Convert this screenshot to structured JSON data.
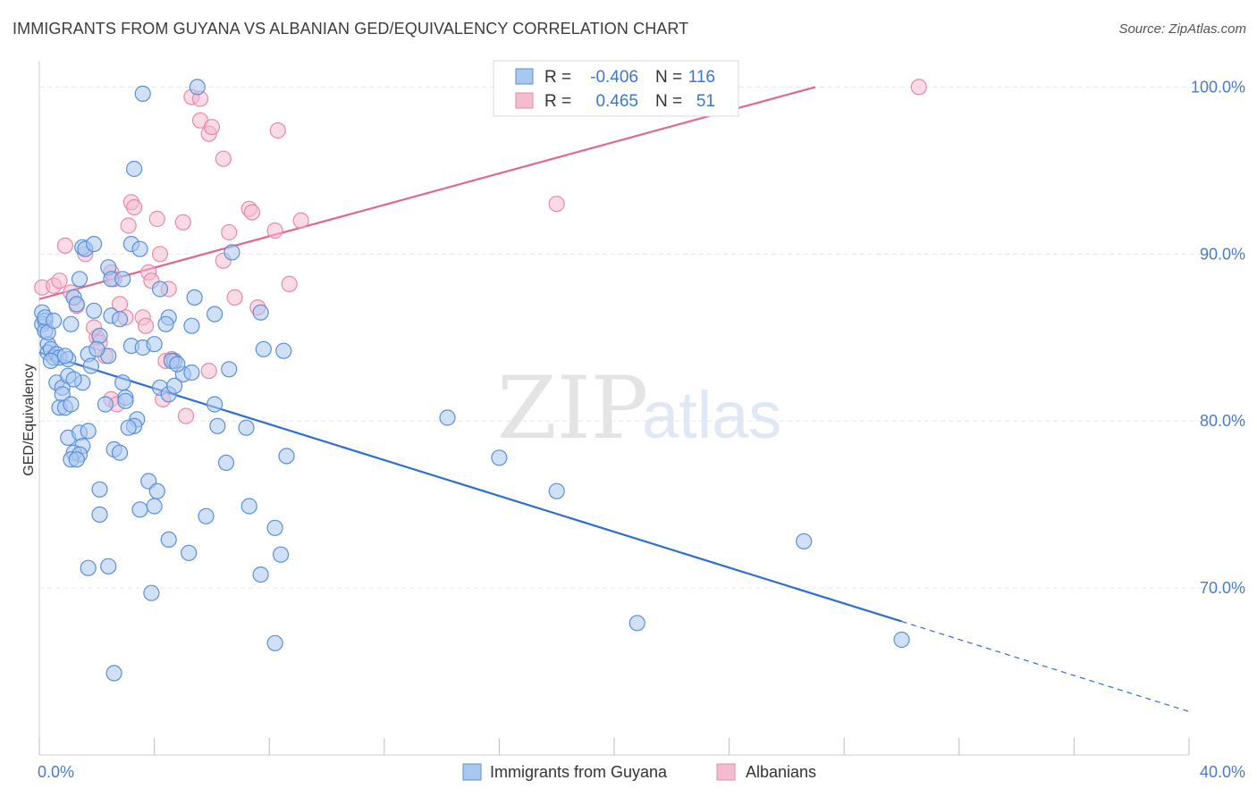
{
  "title": "IMMIGRANTS FROM GUYANA VS ALBANIAN GED/EQUIVALENCY CORRELATION CHART",
  "source": "Source: ZipAtlas.com",
  "watermark": {
    "zip": "ZIP",
    "atlas": "atlas"
  },
  "colors": {
    "guyana_fill": "#a9c8f0",
    "guyana_stroke": "#5b8fd8",
    "guyana_line": "#2f6fce",
    "albanian_fill": "#f5bcd0",
    "albanian_stroke": "#e68aab",
    "albanian_line": "#e06890",
    "tick_text": "#4a7cc9",
    "grid": "#e6e6e6"
  },
  "legend": {
    "rows": [
      {
        "r_label": "R = ",
        "r_value": "-0.406",
        "n_label": "N = ",
        "n_value": "116"
      },
      {
        "r_label": "R = ",
        "r_value": "0.465",
        "n_label": "N = ",
        "n_value": "51"
      }
    ]
  },
  "chart_data": {
    "type": "scatter",
    "xlabel": "",
    "ylabel": "GED/Equivalency",
    "xlim": [
      0,
      40
    ],
    "ylim": [
      60,
      102
    ],
    "x_tick_labels": [
      "0.0%",
      "40.0%"
    ],
    "y_ticks": [
      70,
      80,
      90,
      100
    ],
    "y_tick_labels": [
      "70.0%",
      "80.0%",
      "90.0%",
      "100.0%"
    ],
    "grid": true,
    "legend_position": "top-center",
    "series": [
      {
        "name": "Immigrants from Guyana",
        "r": -0.406,
        "n": 116,
        "trend": {
          "x0": 0,
          "y0": 84.1,
          "x1": 30,
          "y1": 68.0,
          "dashed_to_x": 40,
          "dashed_to_y": 62.6
        },
        "points": [
          [
            0.1,
            86.5
          ],
          [
            0.1,
            85.8
          ],
          [
            0.2,
            86.0
          ],
          [
            0.2,
            85.4
          ],
          [
            0.3,
            84.6
          ],
          [
            0.3,
            84.1
          ],
          [
            0.4,
            84.3
          ],
          [
            0.5,
            83.8
          ],
          [
            0.2,
            86.2
          ],
          [
            0.6,
            84.0
          ],
          [
            0.7,
            83.8
          ],
          [
            0.6,
            82.3
          ],
          [
            0.8,
            82.0
          ],
          [
            0.8,
            81.6
          ],
          [
            0.7,
            80.8
          ],
          [
            0.9,
            80.8
          ],
          [
            1.0,
            83.7
          ],
          [
            1.0,
            82.7
          ],
          [
            1.1,
            85.8
          ],
          [
            1.2,
            87.4
          ],
          [
            1.3,
            87.0
          ],
          [
            1.4,
            88.5
          ],
          [
            1.5,
            90.4
          ],
          [
            1.6,
            90.3
          ],
          [
            1.9,
            90.6
          ],
          [
            2.4,
            89.2
          ],
          [
            2.5,
            88.5
          ],
          [
            2.9,
            88.5
          ],
          [
            3.2,
            90.6
          ],
          [
            3.5,
            90.3
          ],
          [
            3.3,
            95.1
          ],
          [
            3.6,
            99.6
          ],
          [
            5.5,
            100.0
          ],
          [
            6.7,
            90.1
          ],
          [
            4.2,
            87.9
          ],
          [
            4.5,
            86.2
          ],
          [
            4.4,
            85.8
          ],
          [
            5.3,
            85.7
          ],
          [
            5.4,
            87.4
          ],
          [
            6.1,
            86.4
          ],
          [
            7.7,
            86.5
          ],
          [
            7.8,
            84.3
          ],
          [
            2.5,
            86.3
          ],
          [
            2.8,
            86.1
          ],
          [
            1.9,
            86.6
          ],
          [
            1.7,
            84.0
          ],
          [
            1.8,
            83.3
          ],
          [
            2.1,
            85.1
          ],
          [
            2.4,
            83.9
          ],
          [
            3.2,
            84.5
          ],
          [
            3.6,
            84.4
          ],
          [
            4.0,
            84.6
          ],
          [
            4.7,
            83.6
          ],
          [
            5.0,
            82.8
          ],
          [
            4.6,
            83.6
          ],
          [
            5.3,
            82.9
          ],
          [
            6.6,
            83.1
          ],
          [
            1.5,
            82.3
          ],
          [
            1.1,
            81.0
          ],
          [
            2.3,
            81.0
          ],
          [
            2.9,
            82.3
          ],
          [
            3.0,
            81.4
          ],
          [
            3.0,
            81.2
          ],
          [
            3.4,
            80.1
          ],
          [
            3.3,
            79.7
          ],
          [
            3.1,
            79.6
          ],
          [
            4.2,
            82.0
          ],
          [
            4.5,
            81.6
          ],
          [
            4.7,
            82.1
          ],
          [
            6.1,
            81.0
          ],
          [
            6.2,
            79.7
          ],
          [
            7.2,
            79.6
          ],
          [
            1.0,
            79.0
          ],
          [
            1.4,
            79.3
          ],
          [
            1.7,
            79.4
          ],
          [
            1.5,
            78.5
          ],
          [
            1.2,
            78.1
          ],
          [
            1.4,
            78.0
          ],
          [
            1.1,
            77.7
          ],
          [
            1.3,
            77.7
          ],
          [
            2.6,
            78.3
          ],
          [
            2.8,
            78.1
          ],
          [
            6.5,
            77.5
          ],
          [
            8.6,
            77.9
          ],
          [
            2.1,
            75.9
          ],
          [
            3.8,
            76.4
          ],
          [
            4.1,
            75.8
          ],
          [
            2.1,
            74.4
          ],
          [
            3.5,
            74.7
          ],
          [
            4.0,
            74.9
          ],
          [
            5.8,
            74.3
          ],
          [
            7.3,
            74.9
          ],
          [
            8.2,
            73.6
          ],
          [
            4.5,
            72.9
          ],
          [
            5.2,
            72.1
          ],
          [
            8.4,
            72.0
          ],
          [
            1.7,
            71.2
          ],
          [
            2.4,
            71.3
          ],
          [
            7.7,
            70.8
          ],
          [
            3.9,
            69.7
          ],
          [
            8.2,
            66.7
          ],
          [
            2.6,
            64.9
          ],
          [
            14.2,
            80.2
          ],
          [
            16.0,
            77.8
          ],
          [
            18.0,
            75.8
          ],
          [
            26.6,
            72.8
          ],
          [
            20.8,
            67.9
          ],
          [
            30.0,
            66.9
          ],
          [
            0.3,
            85.3
          ],
          [
            0.5,
            86.0
          ],
          [
            0.4,
            83.6
          ],
          [
            0.9,
            83.9
          ],
          [
            2.0,
            84.3
          ],
          [
            4.8,
            83.4
          ],
          [
            8.5,
            84.2
          ],
          [
            1.2,
            82.5
          ]
        ]
      },
      {
        "name": "Albanians",
        "r": 0.465,
        "n": 51,
        "trend": {
          "x0": 0,
          "y0": 87.3,
          "x1": 27,
          "y1": 100.0
        },
        "points": [
          [
            0.1,
            88.0
          ],
          [
            0.5,
            88.1
          ],
          [
            0.7,
            88.4
          ],
          [
            0.9,
            90.5
          ],
          [
            1.1,
            87.7
          ],
          [
            1.3,
            86.9
          ],
          [
            1.6,
            90.0
          ],
          [
            2.0,
            85.0
          ],
          [
            2.3,
            83.9
          ],
          [
            2.5,
            81.3
          ],
          [
            2.7,
            81.0
          ],
          [
            2.5,
            88.9
          ],
          [
            2.6,
            88.5
          ],
          [
            2.8,
            87.0
          ],
          [
            3.0,
            86.2
          ],
          [
            3.1,
            91.7
          ],
          [
            3.2,
            93.1
          ],
          [
            3.3,
            92.8
          ],
          [
            3.6,
            86.2
          ],
          [
            3.7,
            85.7
          ],
          [
            3.8,
            88.9
          ],
          [
            3.9,
            88.4
          ],
          [
            4.1,
            92.1
          ],
          [
            4.2,
            90.0
          ],
          [
            4.3,
            81.3
          ],
          [
            4.5,
            87.9
          ],
          [
            4.4,
            83.6
          ],
          [
            4.6,
            83.7
          ],
          [
            5.0,
            91.9
          ],
          [
            5.1,
            80.3
          ],
          [
            5.3,
            99.4
          ],
          [
            5.6,
            99.3
          ],
          [
            5.6,
            98.0
          ],
          [
            5.9,
            97.2
          ],
          [
            6.0,
            97.6
          ],
          [
            5.9,
            83.0
          ],
          [
            6.4,
            95.7
          ],
          [
            6.6,
            91.3
          ],
          [
            6.8,
            87.4
          ],
          [
            6.4,
            89.6
          ],
          [
            7.3,
            92.7
          ],
          [
            7.4,
            92.5
          ],
          [
            7.6,
            86.8
          ],
          [
            8.2,
            91.4
          ],
          [
            8.7,
            88.2
          ],
          [
            9.1,
            92.0
          ],
          [
            8.3,
            97.4
          ],
          [
            18.0,
            93.0
          ],
          [
            30.6,
            100.0
          ],
          [
            1.9,
            85.6
          ],
          [
            2.1,
            84.7
          ]
        ]
      }
    ]
  }
}
